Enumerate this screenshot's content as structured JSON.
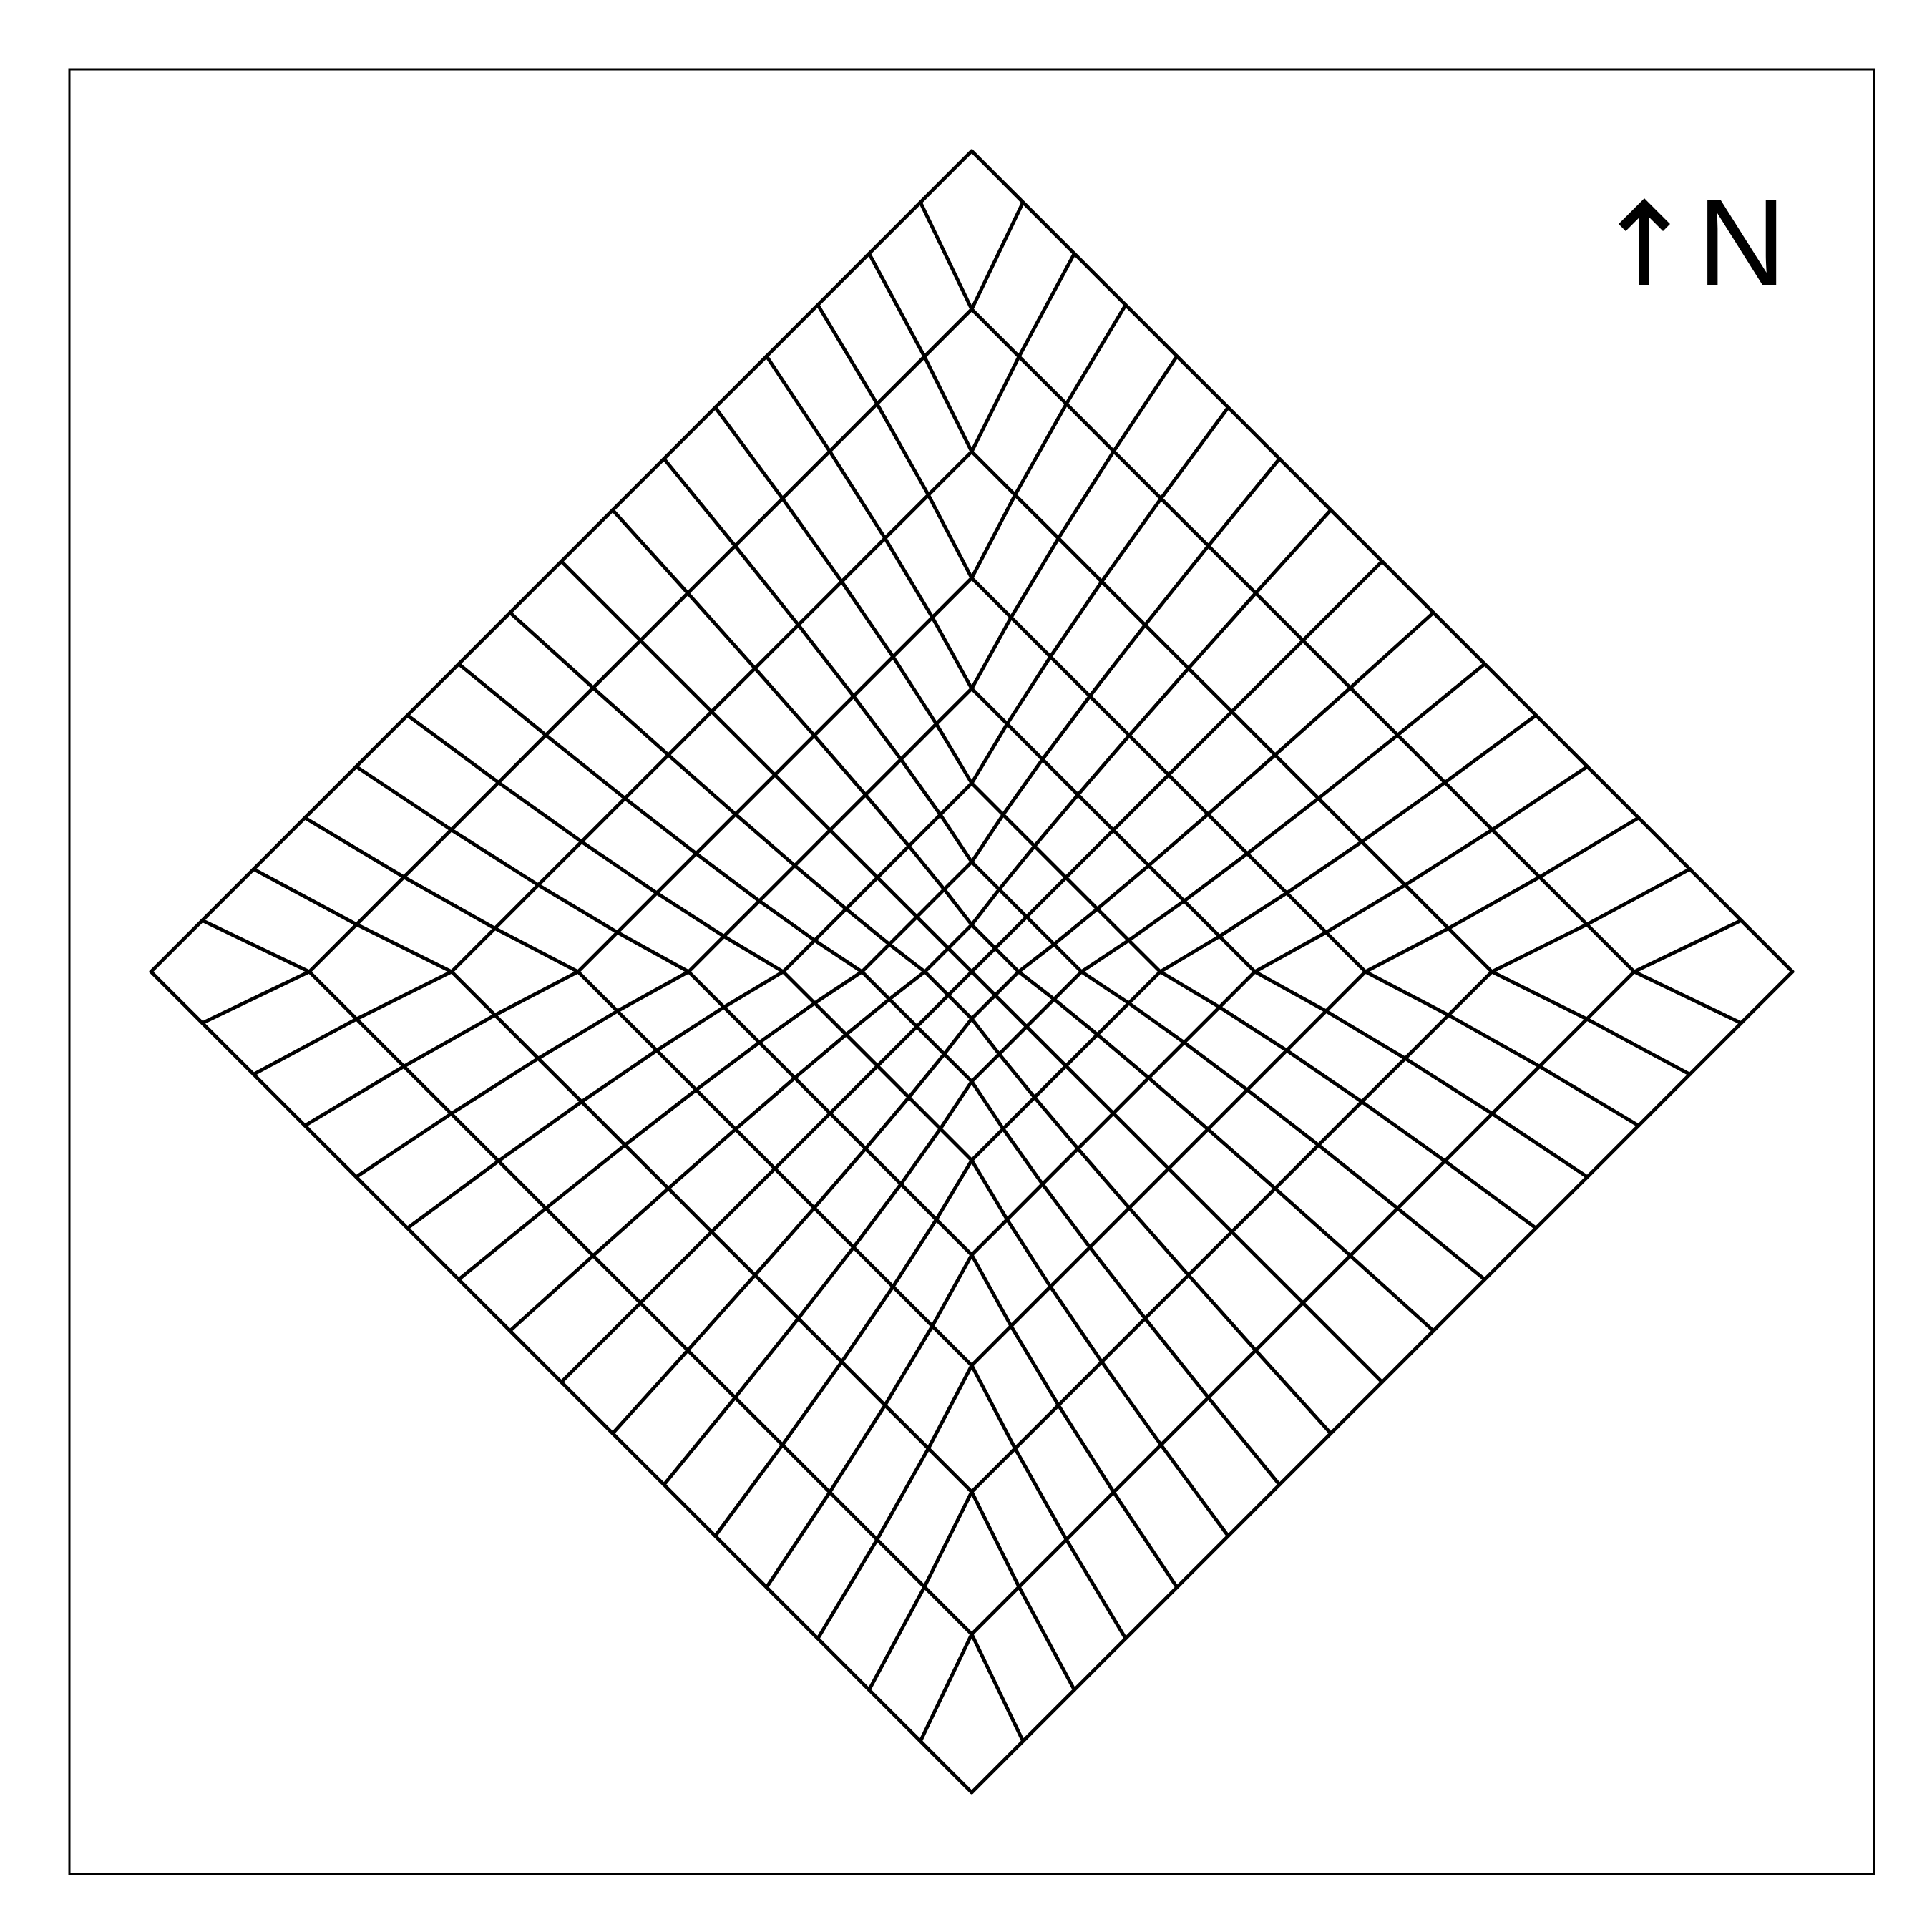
{
  "diagram": {
    "mesh_grid_divisions": 16,
    "line_color": "#000000",
    "background_color": "#ffffff"
  },
  "north_indicator": {
    "arrow": "↑",
    "label": "N",
    "icon": "north-arrow-icon"
  }
}
